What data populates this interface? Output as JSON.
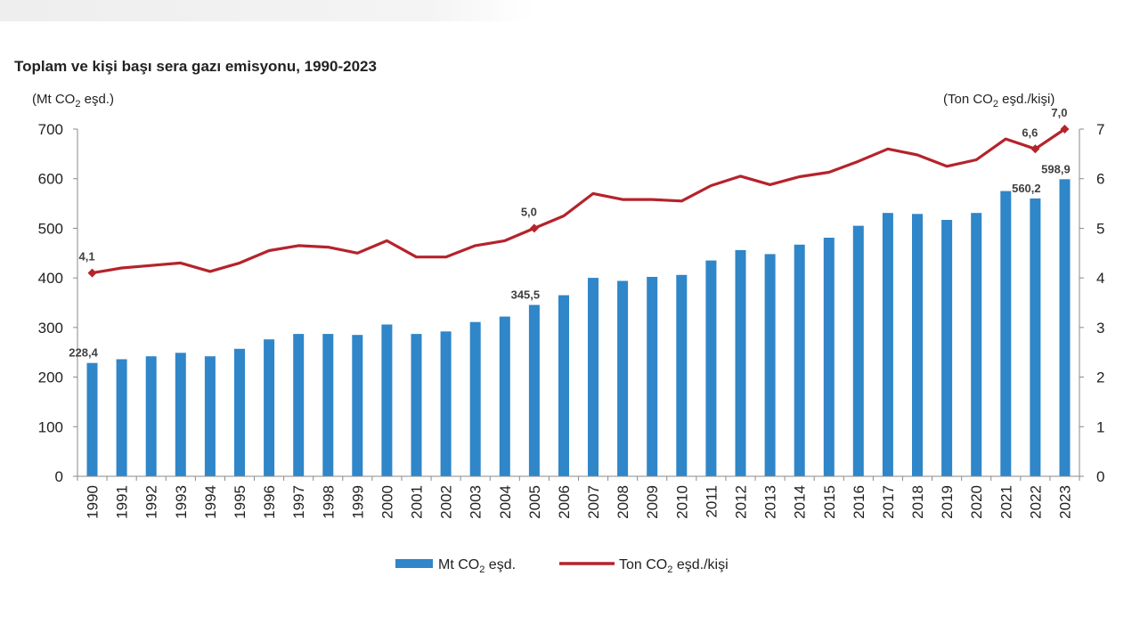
{
  "chart_data": {
    "type": "bar",
    "title": "Toplam ve kişi başı sera gazı emisyonu, 1990-2023",
    "y_left_label": {
      "pre": "(Mt CO",
      "sub": "2",
      "post": " eşd.)"
    },
    "y_right_label": {
      "pre": "(Ton CO",
      "sub": "2",
      "post": " eşd./kişi)"
    },
    "categories": [
      "1990",
      "1991",
      "1992",
      "1993",
      "1994",
      "1995",
      "1996",
      "1997",
      "1998",
      "1999",
      "2000",
      "2001",
      "2002",
      "2003",
      "2004",
      "2005",
      "2006",
      "2007",
      "2008",
      "2009",
      "2010",
      "2011",
      "2012",
      "2013",
      "2014",
      "2015",
      "2016",
      "2017",
      "2018",
      "2019",
      "2020",
      "2021",
      "2022",
      "2023"
    ],
    "series": [
      {
        "name": "Mt CO2 eşd.",
        "type": "bar",
        "axis": "left",
        "color": "#2f86c8",
        "legend": {
          "pre": "Mt CO",
          "sub": "2",
          "post": " eşd."
        },
        "values": [
          228.4,
          236,
          242,
          249,
          242,
          257,
          276,
          287,
          287,
          285,
          306,
          287,
          292,
          311,
          322,
          345.5,
          365,
          400,
          394,
          402,
          406,
          435,
          456,
          448,
          467,
          481,
          505,
          531,
          529,
          517,
          531,
          575,
          560.2,
          598.9
        ],
        "labels": {
          "0": "228,4",
          "15": "345,5",
          "32": "560,2",
          "33": "598,9"
        }
      },
      {
        "name": "Ton CO2 eşd./kişi",
        "type": "line",
        "axis": "right",
        "color": "#b5232b",
        "legend": {
          "pre": "Ton CO",
          "sub": "2",
          "post": " eşd./kişi"
        },
        "values": [
          4.1,
          4.2,
          4.25,
          4.3,
          4.13,
          4.3,
          4.55,
          4.65,
          4.62,
          4.5,
          4.75,
          4.42,
          4.42,
          4.65,
          4.75,
          5.0,
          5.25,
          5.7,
          5.58,
          5.58,
          5.55,
          5.86,
          6.05,
          5.88,
          6.04,
          6.13,
          6.35,
          6.6,
          6.48,
          6.25,
          6.38,
          6.8,
          6.6,
          7.0
        ],
        "labels": {
          "0": "4,1",
          "15": "5,0",
          "32": "6,6",
          "33": "7,0"
        },
        "markers": [
          0,
          15,
          32,
          33
        ]
      }
    ],
    "y_left": {
      "min": 0,
      "max": 700,
      "ticks": [
        0,
        100,
        200,
        300,
        400,
        500,
        600,
        700
      ]
    },
    "y_right": {
      "min": 0,
      "max": 7,
      "ticks": [
        0,
        1,
        2,
        3,
        4,
        5,
        6,
        7
      ]
    },
    "grid": false,
    "legend_position": "bottom"
  }
}
